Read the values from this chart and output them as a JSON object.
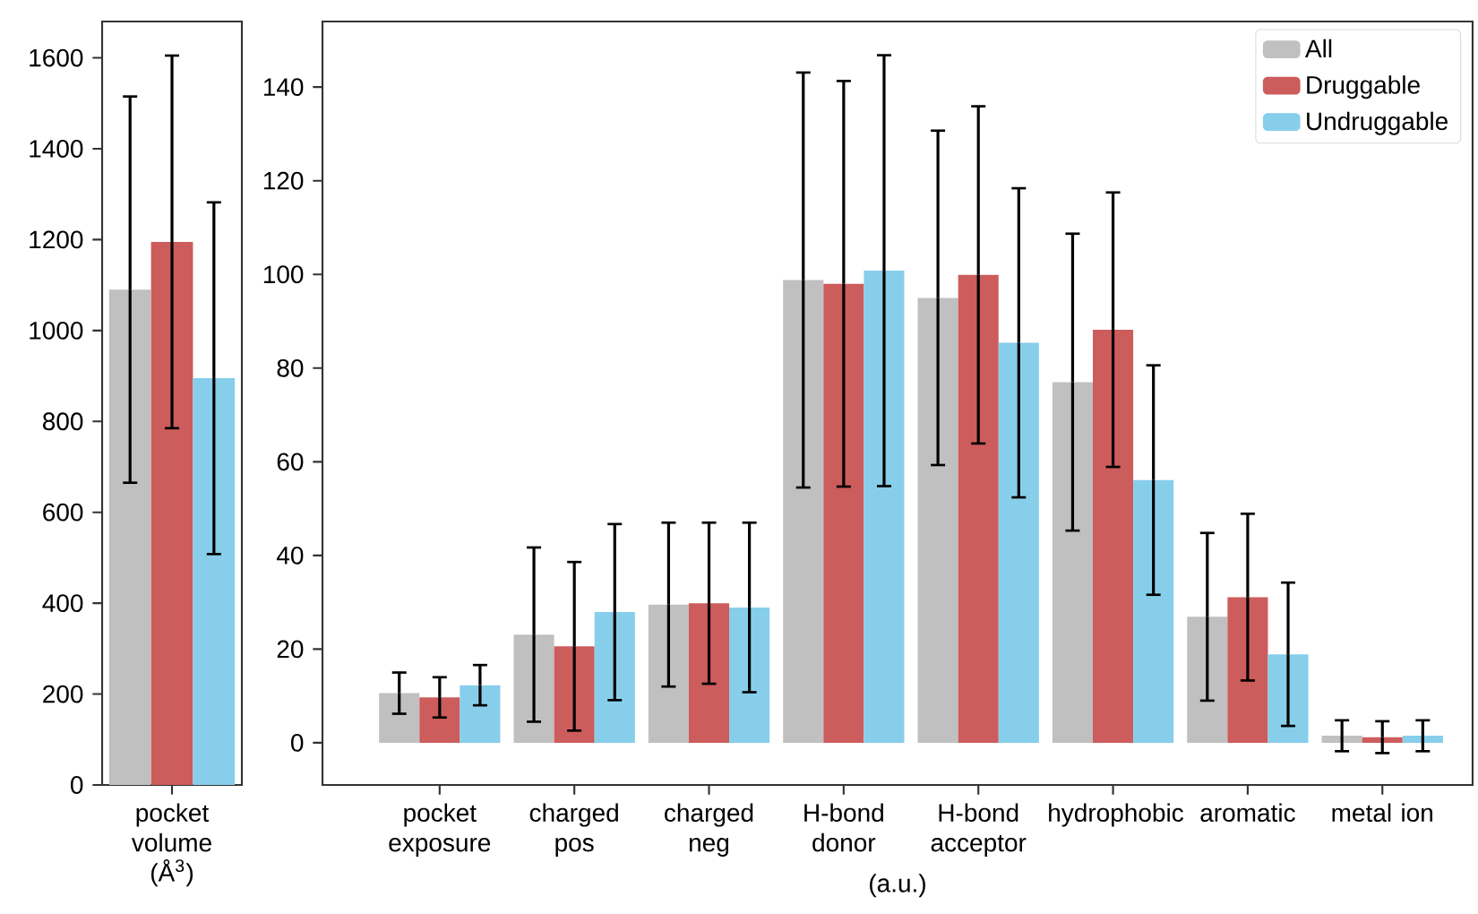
{
  "chart_data": [
    {
      "type": "bar",
      "categories": [
        "pocket volume (Å$^{3}$)"
      ],
      "ylim": [
        0,
        1680
      ],
      "yticks": [
        0,
        200,
        400,
        600,
        800,
        1000,
        1200,
        1400,
        1600
      ],
      "legend": false,
      "series": [
        {
          "color": "#c0c0c0",
          "values": [
            1090
          ],
          "errors": [
            425
          ]
        },
        {
          "color": "#cd5c5c",
          "values": [
            1195
          ],
          "errors": [
            410
          ]
        },
        {
          "color": "#87ceeb",
          "values": [
            895
          ],
          "errors": [
            387
          ]
        }
      ]
    },
    {
      "type": "bar",
      "categories": [
        "pocket exposure",
        "charged pos",
        "charged neg",
        "H-bond donor",
        "H-bond acceptor",
        "hydrophobic",
        "aromatic",
        "metal ion"
      ],
      "xlabel": "(a.u.)",
      "ylim": [
        -9,
        154
      ],
      "yticks": [
        0,
        20,
        40,
        60,
        80,
        100,
        120,
        140
      ],
      "legend": "top right",
      "series": [
        {
          "name": "All",
          "color": "#c0c0c0",
          "values": [
            10.6,
            23.1,
            29.5,
            98.8,
            95.0,
            77.0,
            26.9,
            1.5
          ],
          "errors": [
            4.4,
            18.6,
            17.5,
            44.3,
            35.7,
            31.7,
            17.9,
            3.3
          ]
        },
        {
          "name": "Druggable",
          "color": "#cd5c5c",
          "values": [
            9.7,
            20.6,
            29.8,
            98.0,
            99.9,
            88.2,
            31.1,
            1.2
          ],
          "errors": [
            4.3,
            18.0,
            17.2,
            43.3,
            36.0,
            29.3,
            17.8,
            3.4
          ]
        },
        {
          "name": "Undruggable",
          "color": "#87ceeb",
          "values": [
            12.3,
            27.9,
            28.9,
            100.8,
            85.4,
            56.1,
            18.9,
            1.5
          ],
          "errors": [
            4.3,
            18.8,
            18.1,
            46.0,
            33.0,
            24.5,
            15.3,
            3.3
          ]
        }
      ]
    }
  ]
}
